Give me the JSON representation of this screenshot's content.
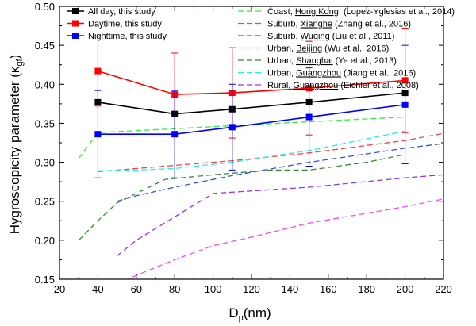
{
  "chart_data": {
    "type": "line",
    "xlabel_main": "D",
    "xlabel_sub": "p",
    "xlabel_rest": "(nm)",
    "ylabel_main": "Hygroscopicity parameter (κ",
    "ylabel_sub": "gf",
    "ylabel_end": ")",
    "xlim": [
      20,
      220
    ],
    "ylim": [
      0.15,
      0.5
    ],
    "xticks": [
      20,
      40,
      60,
      80,
      100,
      120,
      140,
      160,
      180,
      200,
      220
    ],
    "yticks": [
      "0.15",
      "0.20",
      "0.25",
      "0.30",
      "0.35",
      "0.40",
      "0.45",
      "0.50"
    ],
    "grid": false,
    "legend_placement": "top",
    "series": [
      {
        "name": "All day, this study",
        "style": "solid-marker",
        "color": "#000000",
        "x": [
          40,
          80,
          110,
          150,
          200
        ],
        "y": [
          0.377,
          0.362,
          0.368,
          0.377,
          0.389
        ]
      },
      {
        "name": "Daytime, this study",
        "style": "solid-marker",
        "color": "#ff0000",
        "x": [
          40,
          80,
          110,
          150,
          200
        ],
        "y": [
          0.417,
          0.387,
          0.389,
          0.395,
          0.405
        ],
        "err": [
          0.045,
          0.053,
          0.058,
          0.06,
          0.067
        ]
      },
      {
        "name": "Nighttime, this study",
        "style": "solid-marker",
        "color": "#0000ff",
        "x": [
          40,
          80,
          110,
          150,
          200
        ],
        "y": [
          0.336,
          0.336,
          0.345,
          0.358,
          0.374
        ],
        "err": [
          0.056,
          0.056,
          0.055,
          0.063,
          0.076
        ]
      },
      {
        "name_prefix": "Coast, ",
        "name_place": "Hong Kong",
        "name_suffix": ", (Lopez-Yglesias et al., 2014)",
        "style": "dashed",
        "color": "#33ee33",
        "x": [
          30,
          40,
          80,
          110,
          150,
          200
        ],
        "y": [
          0.305,
          0.338,
          0.343,
          0.347,
          0.352,
          0.358
        ]
      },
      {
        "name_prefix": "Suburb, ",
        "name_place": "Xianghe",
        "name_suffix": " (Zhang et al., 2016)",
        "style": "dashed",
        "color": "#ff4040",
        "x": [
          40,
          80,
          110,
          150,
          200,
          220
        ],
        "y": [
          0.288,
          0.296,
          0.302,
          0.312,
          0.328,
          0.337
        ]
      },
      {
        "name_prefix": "Suburb, ",
        "name_place": "Wuqing",
        "name_suffix": " (Liu et al., 2011)",
        "style": "dashed",
        "color": "#3355dd",
        "x": [
          50,
          60,
          80,
          110,
          150,
          200,
          220
        ],
        "y": [
          0.25,
          0.257,
          0.268,
          0.283,
          0.3,
          0.318,
          0.324
        ]
      },
      {
        "name_prefix": "Urban, ",
        "name_place": "Beijing",
        "name_suffix": " (Wu et al., 2016)",
        "style": "dashed",
        "color": "#ff44ff",
        "x": [
          50,
          60,
          80,
          100,
          120,
          150,
          200,
          220
        ],
        "y": [
          0.143,
          0.155,
          0.175,
          0.193,
          0.204,
          0.222,
          0.243,
          0.253
        ]
      },
      {
        "name_prefix": "Urban, ",
        "name_place": "Shanghai",
        "name_suffix": " (Ye et al., 2013)",
        "style": "dashed",
        "color": "#338833",
        "x": [
          30,
          40,
          50,
          60,
          75,
          100,
          130,
          150,
          180,
          200
        ],
        "y": [
          0.2,
          0.225,
          0.248,
          0.26,
          0.278,
          0.284,
          0.29,
          0.29,
          0.3,
          0.31
        ]
      },
      {
        "name_prefix": "Urban, ",
        "name_place": "Guangzhou",
        "name_suffix": " (Jiang et al., 2016)",
        "style": "dashed",
        "color": "#22eeee",
        "x": [
          40,
          60,
          80,
          110,
          150,
          200
        ],
        "y": [
          0.289,
          0.29,
          0.292,
          0.3,
          0.315,
          0.34
        ]
      },
      {
        "name_prefix": "Rural, ",
        "name_place": "Guangzhou",
        "name_suffix": " (Eichler et al., 2008)",
        "style": "dashed",
        "color": "#9933ee",
        "x": [
          50,
          60,
          80,
          100,
          150,
          200,
          220
        ],
        "y": [
          0.18,
          0.2,
          0.23,
          0.26,
          0.268,
          0.28,
          0.284
        ]
      }
    ]
  }
}
